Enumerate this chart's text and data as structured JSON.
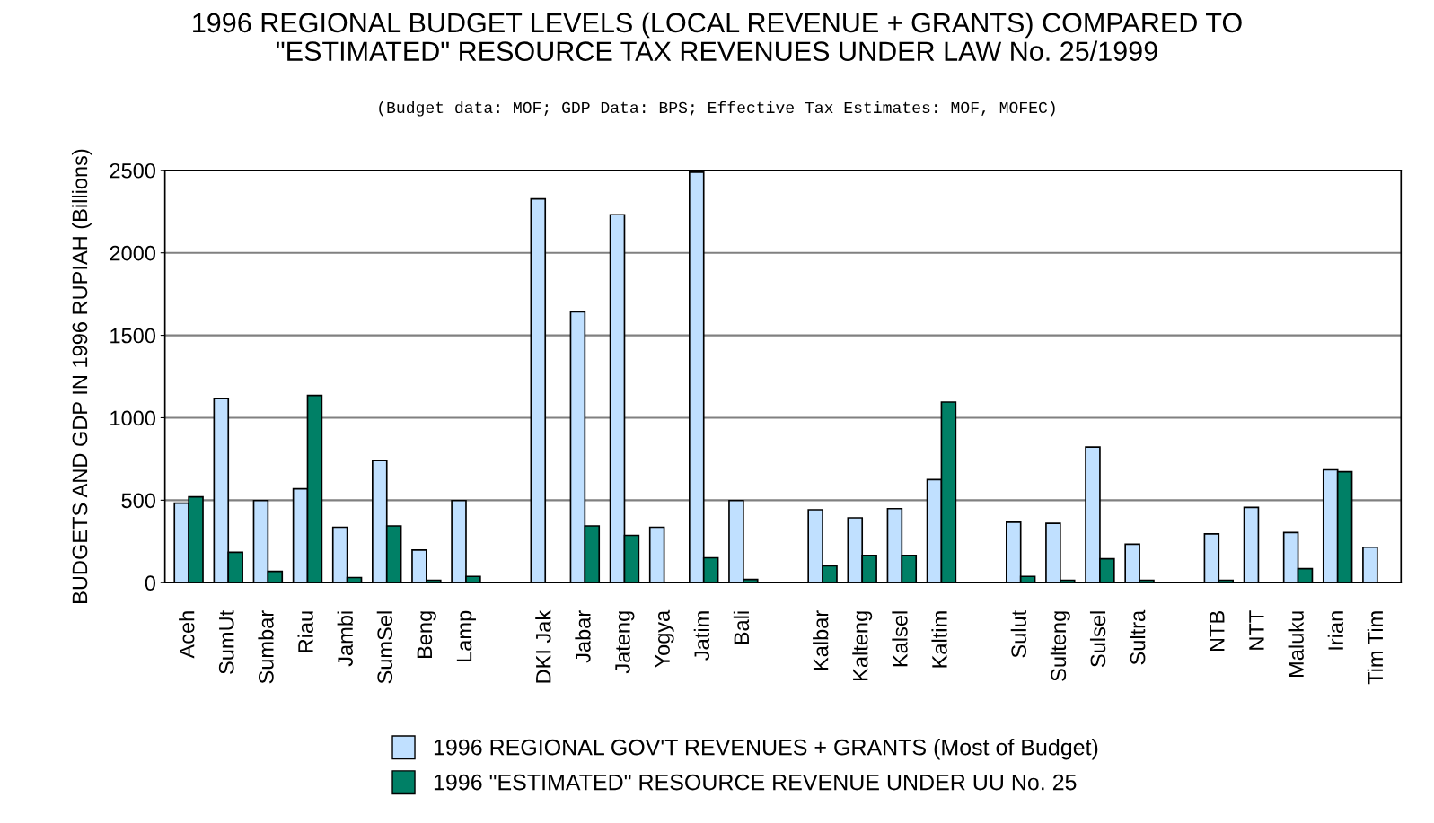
{
  "chart_data": {
    "type": "bar",
    "title": "1996 REGIONAL BUDGET LEVELS (LOCAL REVENUE + GRANTS) COMPARED TO\n\"ESTIMATED\" RESOURCE TAX REVENUES UNDER LAW No. 25/1999",
    "subtitle": "(Budget data: MOF; GDP Data: BPS; Effective Tax Estimates: MOF, MOFEC)",
    "ylabel": "BUDGETS AND GDP IN 1996 RUPIAH (Billions)",
    "categories": [
      "Aceh",
      "SumUt",
      "Sumbar",
      "Riau",
      "Jambi",
      "SumSel",
      "Beng",
      "Lamp",
      null,
      "DKI Jak",
      "Jabar",
      "Jateng",
      "Yogya",
      "Jatim",
      "Bali",
      null,
      "Kalbar",
      "Kalteng",
      "Kalsel",
      "Kaltim",
      null,
      "Sulut",
      "Sulteng",
      "Sulsel",
      "Sultra",
      null,
      "NTB",
      "NTT",
      "Maluku",
      "Irian",
      "Tim Tim"
    ],
    "series": [
      {
        "name": "1996 REGIONAL GOV'T REVENUES + GRANTS (Most of Budget)",
        "color": "#c0e0ff",
        "values": [
          482,
          1116,
          498,
          569,
          336,
          740,
          198,
          498,
          null,
          2327,
          1642,
          2231,
          336,
          2489,
          498,
          null,
          442,
          393,
          449,
          625,
          null,
          367,
          360,
          822,
          233,
          null,
          296,
          456,
          304,
          684,
          215
        ]
      },
      {
        "name": "1996 \"ESTIMATED\" RESOURCE REVENUE UNDER UU No. 25",
        "color": "#008066",
        "values": [
          520,
          184,
          69,
          1135,
          31,
          344,
          15,
          38,
          null,
          null,
          344,
          287,
          null,
          151,
          20,
          null,
          102,
          165,
          165,
          1095,
          null,
          38,
          15,
          145,
          15,
          null,
          15,
          null,
          85,
          673,
          null
        ]
      }
    ],
    "ylim": [
      0,
      2500
    ],
    "yticks": [
      0,
      500,
      1000,
      1500,
      2000,
      2500
    ],
    "grid": "y",
    "legend": "bottom"
  }
}
